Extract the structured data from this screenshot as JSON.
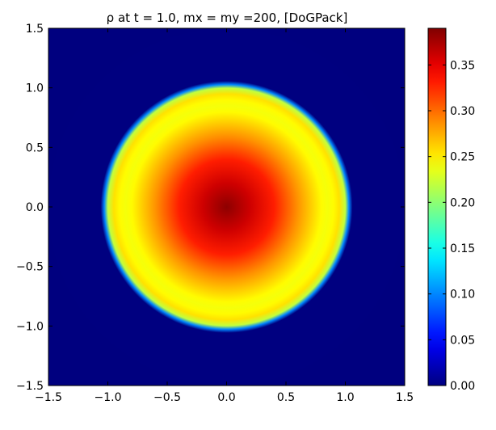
{
  "chart_data": {
    "type": "heatmap",
    "title": "ρ  at  t = 1.0,  mx = my =200,   [DoGPack]",
    "xlabel": "",
    "ylabel": "",
    "xlim": [
      -1.5,
      1.5
    ],
    "ylim": [
      -1.5,
      1.5
    ],
    "x_ticks": [
      "−1.5",
      "−1.0",
      "−0.5",
      "0.0",
      "0.5",
      "1.0",
      "1.5"
    ],
    "y_ticks": [
      "1.5",
      "1.0",
      "0.5",
      "0.0",
      "−0.5",
      "−1.0",
      "−1.5"
    ],
    "x_tick_values": [
      -1.5,
      -1.0,
      -0.5,
      0.0,
      0.5,
      1.0,
      1.5
    ],
    "y_tick_values": [
      1.5,
      1.0,
      0.5,
      0.0,
      -0.5,
      -1.0,
      -1.5
    ],
    "colorbar": {
      "colormap": "jet",
      "range": [
        0.0,
        0.39
      ],
      "tick_labels": [
        "0.00",
        "0.05",
        "0.10",
        "0.15",
        "0.20",
        "0.25",
        "0.30",
        "0.35"
      ],
      "tick_values": [
        0.0,
        0.05,
        0.1,
        0.15,
        0.2,
        0.25,
        0.3,
        0.35
      ]
    },
    "field": {
      "center": [
        0.0,
        0.0
      ],
      "radial_profile_r": [
        0.0,
        0.2,
        0.4,
        0.6,
        0.8,
        0.85,
        0.9,
        0.95,
        1.0,
        1.03,
        1.06,
        1.5
      ],
      "radial_profile_value": [
        0.385,
        0.36,
        0.33,
        0.285,
        0.245,
        0.24,
        0.245,
        0.255,
        0.22,
        0.1,
        0.0,
        0.0
      ]
    },
    "grid": false
  },
  "colors": {
    "background": "#00007f",
    "axes": "#000000"
  }
}
